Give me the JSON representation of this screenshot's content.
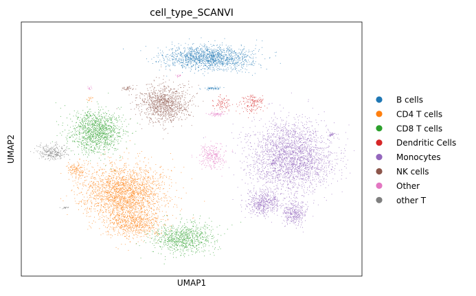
{
  "chart_data": {
    "type": "scatter",
    "title": "cell_type_SCANVI",
    "xlabel": "UMAP1",
    "ylabel": "UMAP2",
    "xlim": [
      0,
      100
    ],
    "ylim": [
      0,
      100
    ],
    "ticks": "none",
    "grid": false,
    "legend_placement": "right",
    "series": [
      {
        "name": "B cells",
        "color": "#1f77b4",
        "clusters": [
          {
            "cx": 55,
            "cy": 86,
            "sx": 10.5,
            "sy": 4.0,
            "n": 1500
          },
          {
            "cx": 56,
            "cy": 74,
            "sx": 2.0,
            "sy": 0.5,
            "n": 60
          }
        ]
      },
      {
        "name": "CD4 T cells",
        "color": "#ff7f0e",
        "clusters": [
          {
            "cx": 30,
            "cy": 33,
            "sx": 10.0,
            "sy": 9.0,
            "n": 2300
          },
          {
            "cx": 33,
            "cy": 21,
            "sx": 7.0,
            "sy": 5.0,
            "n": 700
          },
          {
            "cx": 16,
            "cy": 42,
            "sx": 2.0,
            "sy": 2.5,
            "n": 120
          },
          {
            "cx": 20,
            "cy": 70,
            "sx": 0.8,
            "sy": 1.0,
            "n": 15
          }
        ]
      },
      {
        "name": "CD8 T cells",
        "color": "#2ca02c",
        "clusters": [
          {
            "cx": 22,
            "cy": 57,
            "sx": 6.5,
            "sy": 7.0,
            "n": 1200
          },
          {
            "cx": 47,
            "cy": 15,
            "sx": 7.5,
            "sy": 5.0,
            "n": 800
          }
        ]
      },
      {
        "name": "Dendritic Cells",
        "color": "#d62728",
        "clusters": [
          {
            "cx": 68,
            "cy": 68,
            "sx": 3.0,
            "sy": 3.0,
            "n": 150
          },
          {
            "cx": 59,
            "cy": 68,
            "sx": 1.8,
            "sy": 2.5,
            "n": 80
          }
        ]
      },
      {
        "name": "Monocytes",
        "color": "#9467bd",
        "clusters": [
          {
            "cx": 79,
            "cy": 47,
            "sx": 10.0,
            "sy": 11.0,
            "n": 2600
          },
          {
            "cx": 71,
            "cy": 29,
            "sx": 4.0,
            "sy": 4.0,
            "n": 500
          },
          {
            "cx": 80,
            "cy": 25,
            "sx": 3.0,
            "sy": 4.0,
            "n": 350
          },
          {
            "cx": 91,
            "cy": 56,
            "sx": 0.8,
            "sy": 0.8,
            "n": 30
          }
        ]
      },
      {
        "name": "NK cells",
        "color": "#8c564b",
        "clusters": [
          {
            "cx": 42,
            "cy": 68,
            "sx": 6.0,
            "sy": 6.0,
            "n": 1100
          },
          {
            "cx": 31,
            "cy": 74,
            "sx": 1.5,
            "sy": 0.7,
            "n": 40
          }
        ]
      },
      {
        "name": "Other",
        "color": "#e377c2",
        "clusters": [
          {
            "cx": 56,
            "cy": 47,
            "sx": 3.2,
            "sy": 4.0,
            "n": 260
          },
          {
            "cx": 57,
            "cy": 64,
            "sx": 2.0,
            "sy": 0.8,
            "n": 60
          },
          {
            "cx": 46,
            "cy": 79,
            "sx": 0.8,
            "sy": 0.5,
            "n": 15
          },
          {
            "cx": 20,
            "cy": 74,
            "sx": 0.7,
            "sy": 0.7,
            "n": 12
          }
        ]
      },
      {
        "name": "other T",
        "color": "#7f7f7f",
        "clusters": [
          {
            "cx": 9,
            "cy": 49,
            "sx": 3.5,
            "sy": 2.5,
            "n": 280
          },
          {
            "cx": 13,
            "cy": 27,
            "sx": 1.0,
            "sy": 0.3,
            "n": 20
          }
        ]
      }
    ]
  }
}
